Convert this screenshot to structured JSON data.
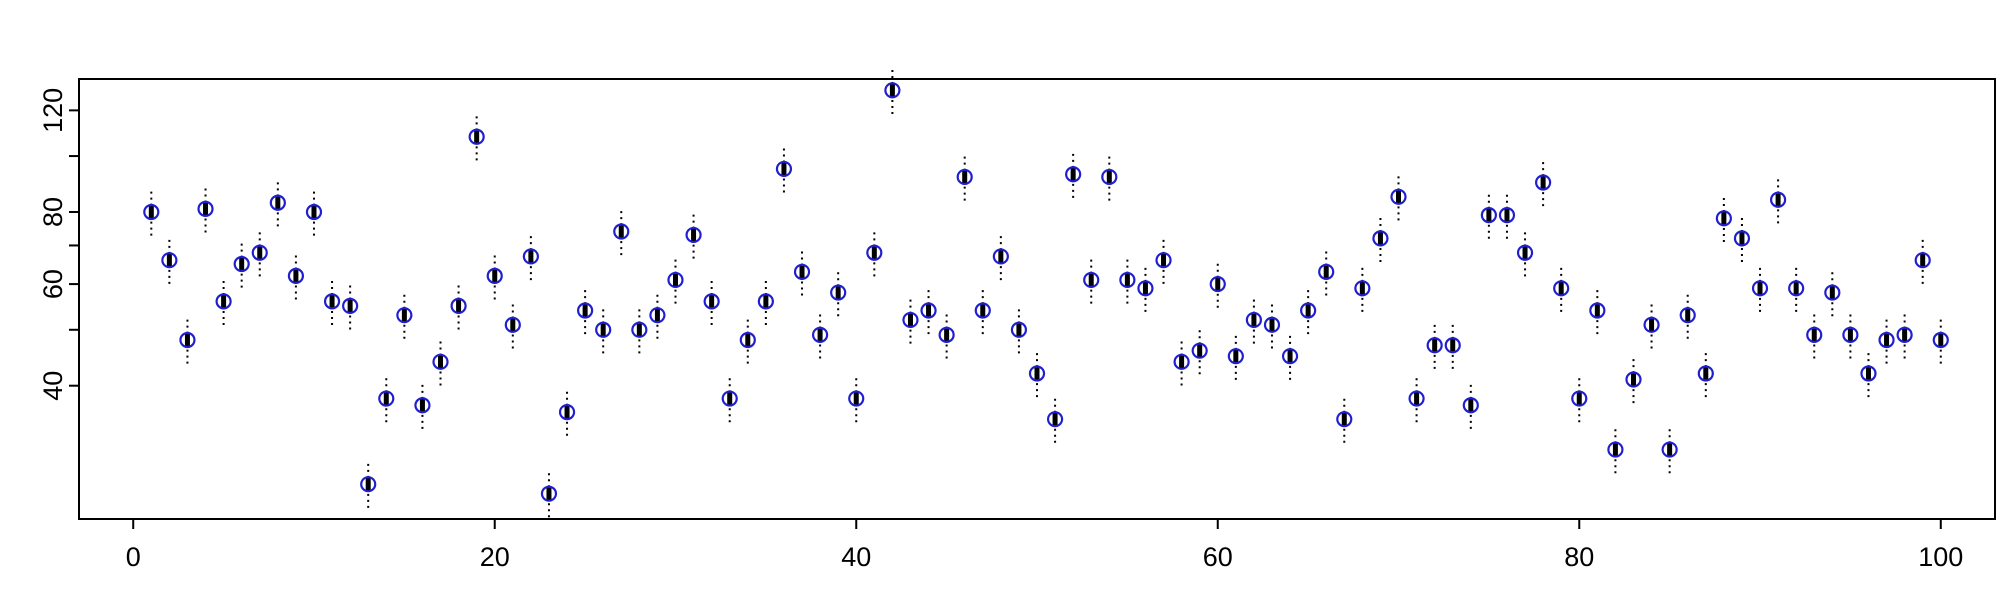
{
  "colors": {
    "point": "#1f1fd0",
    "box": "#000000",
    "axis": "#000000"
  },
  "chart_data": {
    "type": "scatter",
    "title": "",
    "xlabel": "",
    "ylabel": "",
    "scale_y": "log",
    "xlim": [
      -3,
      103
    ],
    "ylim": [
      23.5,
      136
    ],
    "grid": false,
    "xticks": [
      0,
      20,
      40,
      60,
      80,
      100
    ],
    "yticks": [
      40,
      60,
      80,
      120
    ],
    "y_minor_ticks": [
      50,
      70,
      100
    ],
    "series": [
      {
        "marker": "circle",
        "x": [
          1,
          2,
          3,
          4,
          5,
          6,
          7,
          8,
          9,
          10,
          11,
          12,
          13,
          14,
          15,
          16,
          17,
          18,
          19,
          20,
          21,
          22,
          23,
          24,
          25,
          26,
          27,
          28,
          29,
          30,
          31,
          32,
          33,
          34,
          35,
          36,
          37,
          38,
          39,
          40,
          41,
          42,
          43,
          44,
          45,
          46,
          47,
          48,
          49,
          50,
          51,
          52,
          53,
          54,
          55,
          56,
          57,
          58,
          59,
          60,
          61,
          62,
          63,
          64,
          65,
          66,
          67,
          68,
          69,
          70,
          71,
          72,
          73,
          74,
          75,
          76,
          77,
          78,
          79,
          80,
          81,
          82,
          83,
          84,
          85,
          86,
          87,
          88,
          89,
          90,
          91,
          92,
          93,
          94,
          95,
          96,
          97,
          98,
          99,
          100
        ],
        "y": [
          80,
          66,
          48,
          81,
          56,
          65,
          68,
          83,
          62,
          80,
          56,
          55,
          27,
          38,
          53,
          37,
          44,
          55,
          108,
          62,
          51,
          67,
          26,
          36,
          54,
          50,
          74,
          50,
          53,
          61,
          73,
          56,
          38,
          48,
          56,
          95,
          63,
          49,
          58,
          38,
          68,
          130,
          52,
          54,
          49,
          92,
          54,
          67,
          50,
          42,
          35,
          93,
          61,
          92,
          61,
          59,
          66,
          44,
          46,
          60,
          45,
          52,
          51,
          45,
          54,
          63,
          35,
          59,
          72,
          85,
          38,
          47,
          47,
          37,
          79,
          79,
          68,
          90,
          59,
          38,
          54,
          31,
          41,
          51,
          31,
          53,
          42,
          78,
          72,
          59,
          84,
          59,
          49,
          58,
          49,
          42,
          48,
          49,
          66,
          48
        ]
      }
    ]
  }
}
